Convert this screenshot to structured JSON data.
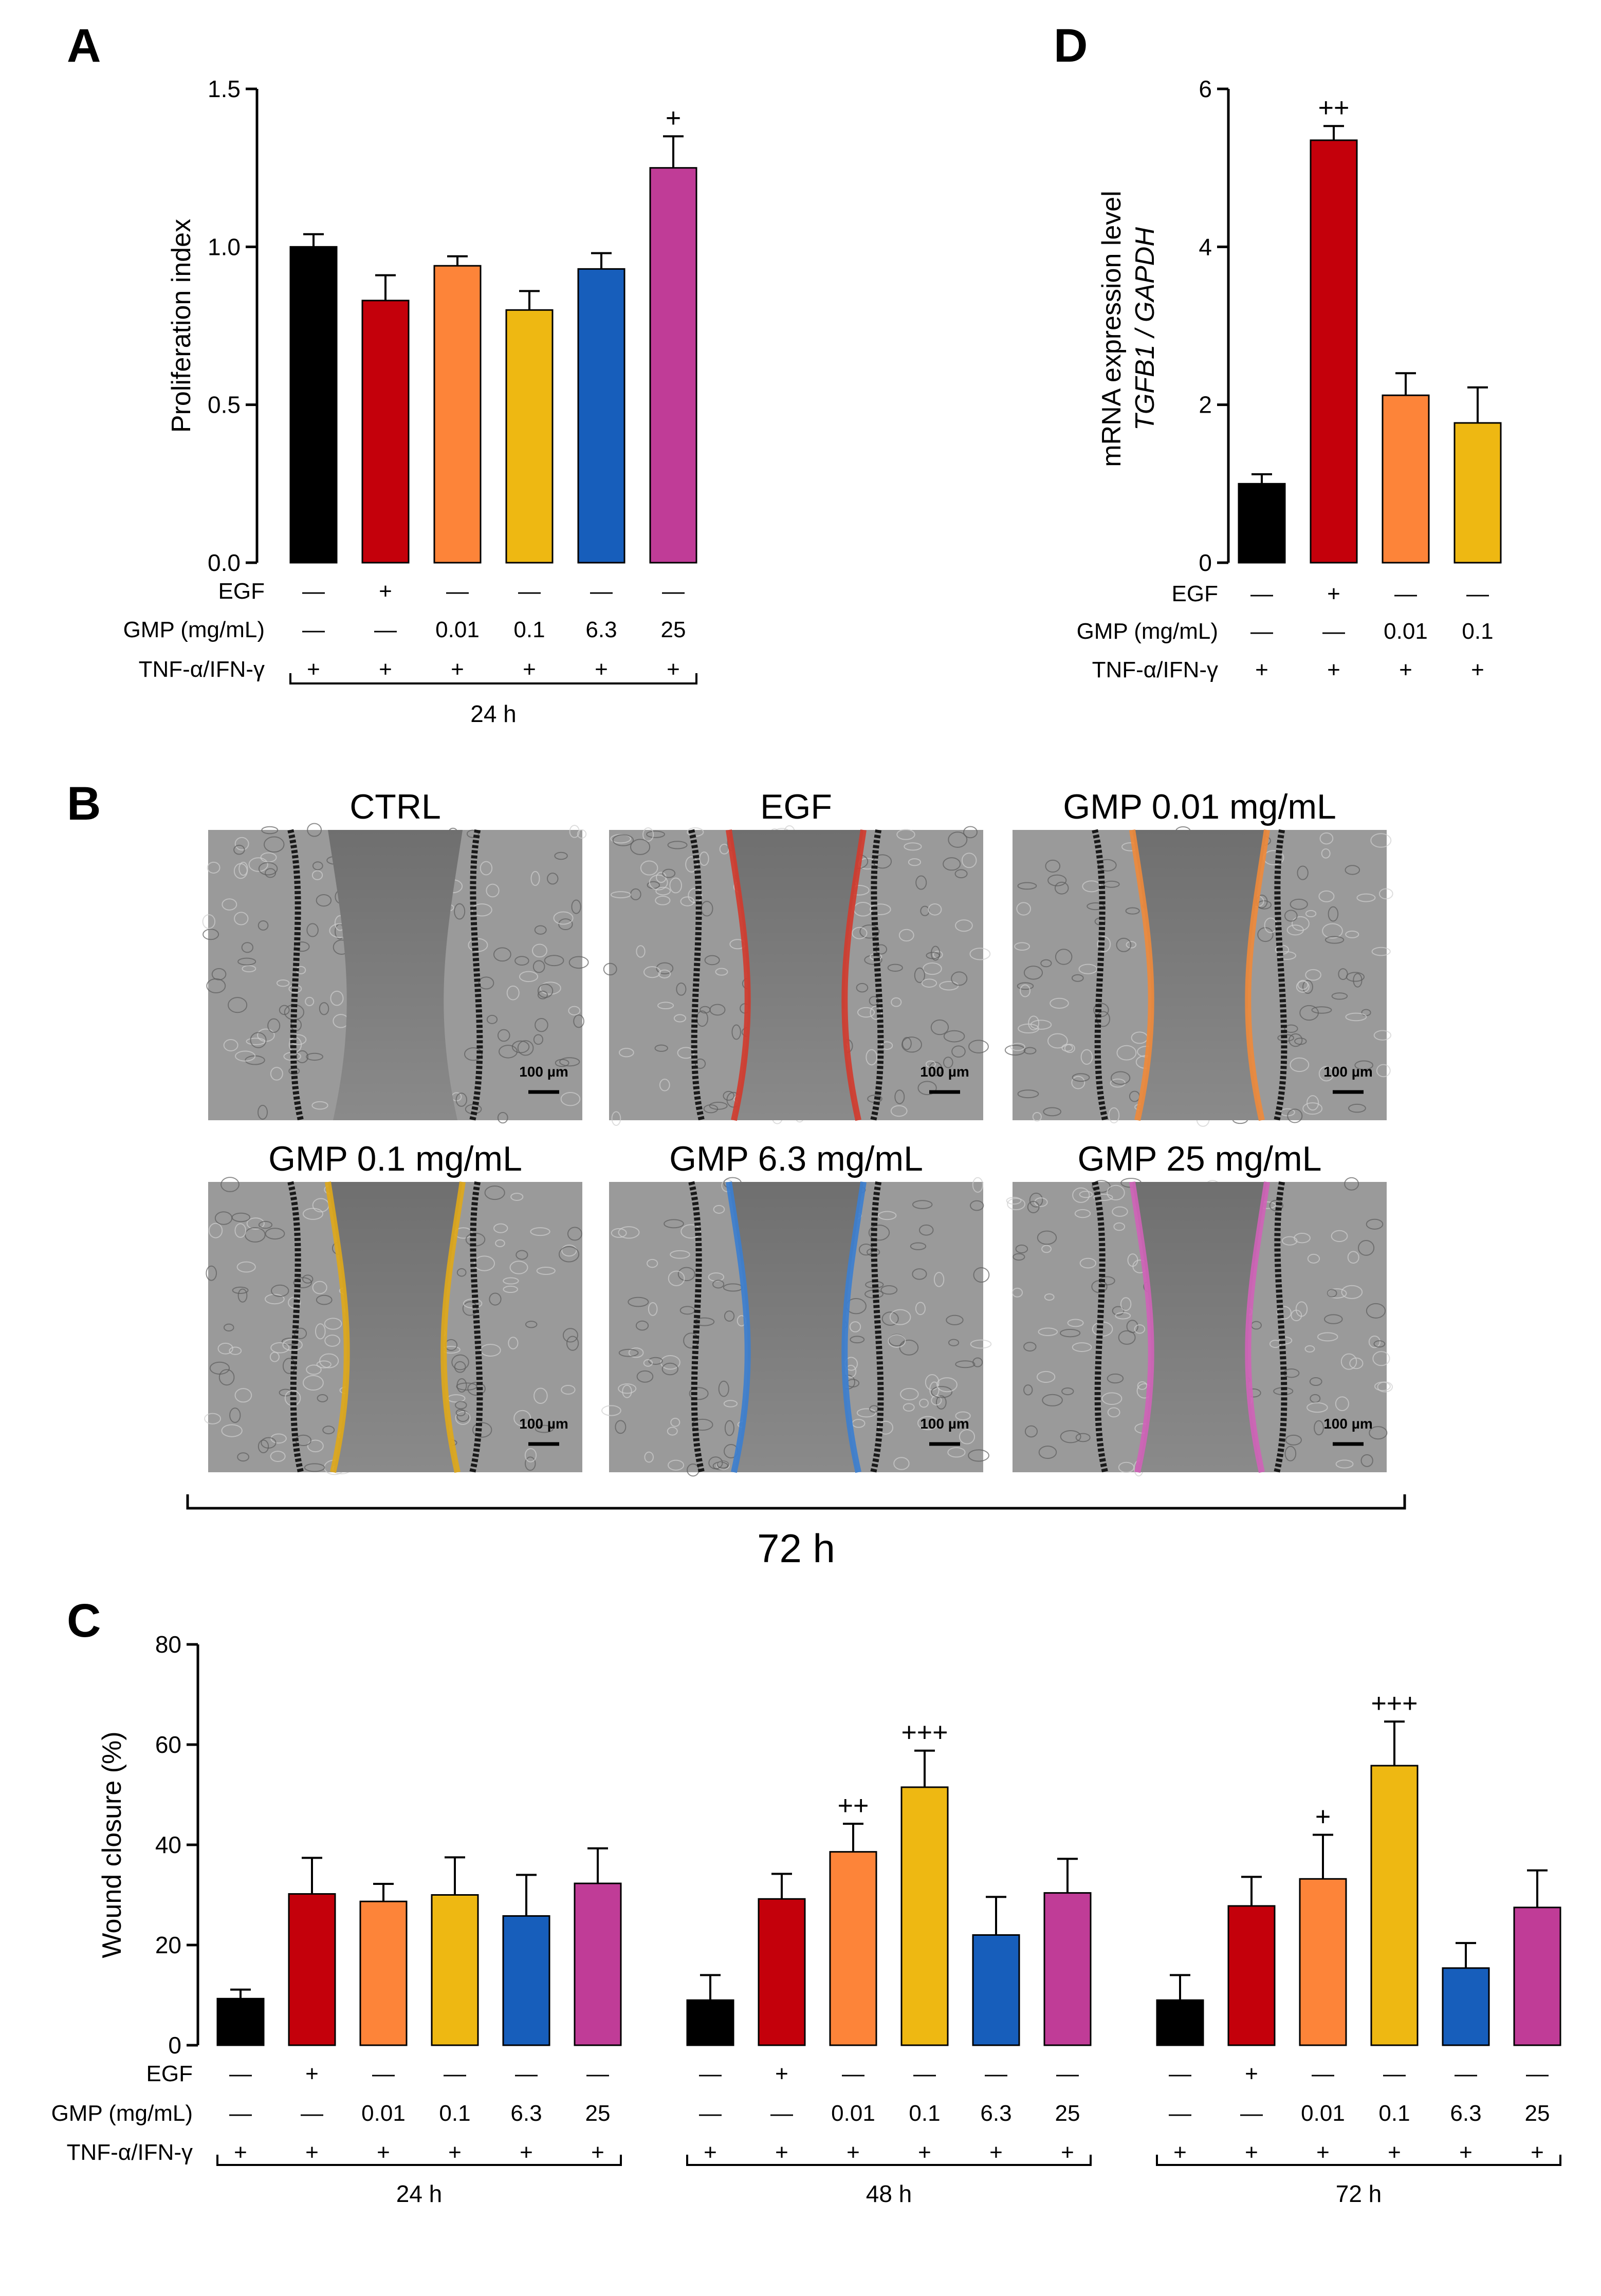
{
  "panels": {
    "a": "A",
    "b": "B",
    "c": "C",
    "d": "D"
  },
  "row_labels": {
    "egf": "EGF",
    "gmp": "GMP (mg/mL)",
    "tnf": "TNF-α/IFN-γ"
  },
  "colors": {
    "ctrl": "#000000",
    "egf": "#c4000b",
    "gmp001": "#fd8439",
    "gmp01": "#eeb812",
    "gmp63": "#175ebb",
    "gmp25": "#c03c97"
  },
  "chart_data": [
    {
      "id": "A",
      "type": "bar",
      "ylabel": "Proliferation index",
      "ylim": [
        0,
        1.5
      ],
      "yticks": [
        "0.0",
        "0.5",
        "1.0",
        "1.5"
      ],
      "ytick_values": [
        0,
        0.5,
        1.0,
        1.5
      ],
      "groups": [
        {
          "label": "24 h",
          "bars": [
            {
              "name": "CTRL",
              "value": 1.0,
              "error": 0.04,
              "color": "#000000",
              "egf": "—",
              "gmp": "—",
              "tnf": "+",
              "sig": ""
            },
            {
              "name": "EGF",
              "value": 0.83,
              "error": 0.08,
              "color": "#c4000b",
              "egf": "+",
              "gmp": "—",
              "tnf": "+",
              "sig": ""
            },
            {
              "name": "GMP 0.01",
              "value": 0.94,
              "error": 0.03,
              "color": "#fd8439",
              "egf": "—",
              "gmp": "0.01",
              "tnf": "+",
              "sig": ""
            },
            {
              "name": "GMP 0.1",
              "value": 0.8,
              "error": 0.06,
              "color": "#eeb812",
              "egf": "—",
              "gmp": "0.1",
              "tnf": "+",
              "sig": ""
            },
            {
              "name": "GMP 6.3",
              "value": 0.93,
              "error": 0.05,
              "color": "#175ebb",
              "egf": "—",
              "gmp": "6.3",
              "tnf": "+",
              "sig": ""
            },
            {
              "name": "GMP 25",
              "value": 1.25,
              "error": 0.1,
              "color": "#c03c97",
              "egf": "—",
              "gmp": "25",
              "tnf": "+",
              "sig": "+"
            }
          ]
        }
      ]
    },
    {
      "id": "D",
      "type": "bar",
      "ylabel_line1": "mRNA expression level",
      "ylabel_line2": "TGFB1 / GAPDH",
      "ylim": [
        0,
        6
      ],
      "yticks": [
        "0",
        "2",
        "4",
        "6"
      ],
      "ytick_values": [
        0,
        2,
        4,
        6
      ],
      "groups": [
        {
          "label": "",
          "bars": [
            {
              "name": "CTRL",
              "value": 1.0,
              "error": 0.12,
              "color": "#000000",
              "egf": "—",
              "gmp": "—",
              "tnf": "+",
              "sig": ""
            },
            {
              "name": "EGF",
              "value": 5.35,
              "error": 0.18,
              "color": "#c4000b",
              "egf": "+",
              "gmp": "—",
              "tnf": "+",
              "sig": "++"
            },
            {
              "name": "GMP 0.01",
              "value": 2.12,
              "error": 0.28,
              "color": "#fd8439",
              "egf": "—",
              "gmp": "0.01",
              "tnf": "+",
              "sig": ""
            },
            {
              "name": "GMP 0.1",
              "value": 1.77,
              "error": 0.45,
              "color": "#eeb812",
              "egf": "—",
              "gmp": "0.1",
              "tnf": "+",
              "sig": ""
            }
          ]
        }
      ]
    },
    {
      "id": "C",
      "type": "bar",
      "ylabel": "Wound closure (%)",
      "ylim": [
        0,
        80
      ],
      "yticks": [
        "0",
        "20",
        "40",
        "60",
        "80"
      ],
      "ytick_values": [
        0,
        20,
        40,
        60,
        80
      ],
      "groups": [
        {
          "label": "24 h",
          "bars": [
            {
              "name": "CTRL",
              "value": 9.3,
              "error": 1.8,
              "color": "#000000",
              "egf": "—",
              "gmp": "—",
              "tnf": "+",
              "sig": ""
            },
            {
              "name": "EGF",
              "value": 30.2,
              "error": 7.2,
              "color": "#c4000b",
              "egf": "+",
              "gmp": "—",
              "tnf": "+",
              "sig": ""
            },
            {
              "name": "GMP 0.01",
              "value": 28.7,
              "error": 3.5,
              "color": "#fd8439",
              "egf": "—",
              "gmp": "0.01",
              "tnf": "+",
              "sig": ""
            },
            {
              "name": "GMP 0.1",
              "value": 30.0,
              "error": 7.5,
              "color": "#eeb812",
              "egf": "—",
              "gmp": "0.1",
              "tnf": "+",
              "sig": ""
            },
            {
              "name": "GMP 6.3",
              "value": 25.8,
              "error": 8.2,
              "color": "#175ebb",
              "egf": "—",
              "gmp": "6.3",
              "tnf": "+",
              "sig": ""
            },
            {
              "name": "GMP 25",
              "value": 32.3,
              "error": 7.0,
              "color": "#c03c97",
              "egf": "—",
              "gmp": "25",
              "tnf": "+",
              "sig": ""
            }
          ]
        },
        {
          "label": "48 h",
          "bars": [
            {
              "name": "CTRL",
              "value": 9.0,
              "error": 5.0,
              "color": "#000000",
              "egf": "—",
              "gmp": "—",
              "tnf": "+",
              "sig": ""
            },
            {
              "name": "EGF",
              "value": 29.2,
              "error": 5.0,
              "color": "#c4000b",
              "egf": "+",
              "gmp": "—",
              "tnf": "+",
              "sig": ""
            },
            {
              "name": "GMP 0.01",
              "value": 38.6,
              "error": 5.6,
              "color": "#fd8439",
              "egf": "—",
              "gmp": "0.01",
              "tnf": "+",
              "sig": "++"
            },
            {
              "name": "GMP 0.1",
              "value": 51.5,
              "error": 7.3,
              "color": "#eeb812",
              "egf": "—",
              "gmp": "0.1",
              "tnf": "+",
              "sig": "+++"
            },
            {
              "name": "GMP 6.3",
              "value": 22.0,
              "error": 7.6,
              "color": "#175ebb",
              "egf": "—",
              "gmp": "6.3",
              "tnf": "+",
              "sig": ""
            },
            {
              "name": "GMP 25",
              "value": 30.4,
              "error": 6.8,
              "color": "#c03c97",
              "egf": "—",
              "gmp": "25",
              "tnf": "+",
              "sig": ""
            }
          ]
        },
        {
          "label": "72 h",
          "bars": [
            {
              "name": "CTRL",
              "value": 9.0,
              "error": 5.0,
              "color": "#000000",
              "egf": "—",
              "gmp": "—",
              "tnf": "+",
              "sig": ""
            },
            {
              "name": "EGF",
              "value": 27.8,
              "error": 5.8,
              "color": "#c4000b",
              "egf": "+",
              "gmp": "—",
              "tnf": "+",
              "sig": ""
            },
            {
              "name": "GMP 0.01",
              "value": 33.2,
              "error": 8.8,
              "color": "#fd8439",
              "egf": "—",
              "gmp": "0.01",
              "tnf": "+",
              "sig": "+"
            },
            {
              "name": "GMP 0.1",
              "value": 55.8,
              "error": 8.8,
              "color": "#eeb812",
              "egf": "—",
              "gmp": "0.1",
              "tnf": "+",
              "sig": "+++"
            },
            {
              "name": "GMP 6.3",
              "value": 15.4,
              "error": 5.0,
              "color": "#175ebb",
              "egf": "—",
              "gmp": "6.3",
              "tnf": "+",
              "sig": ""
            },
            {
              "name": "GMP 25",
              "value": 27.5,
              "error": 7.4,
              "color": "#c03c97",
              "egf": "—",
              "gmp": "25",
              "tnf": "+",
              "sig": ""
            }
          ]
        }
      ]
    }
  ],
  "micrographs": {
    "items": [
      {
        "title": "CTRL",
        "line_color": "#1a1a1a",
        "scale": "100 µm"
      },
      {
        "title": "EGF",
        "line_color": "#d33a2c",
        "scale": "100 µm"
      },
      {
        "title": "GMP 0.01 mg/mL",
        "line_color": "#f08a3a",
        "scale": "100 µm"
      },
      {
        "title": "GMP 0.1  mg/mL",
        "line_color": "#e0a818",
        "scale": "100 µm"
      },
      {
        "title": "GMP 6.3  mg/mL",
        "line_color": "#3b7ed0",
        "scale": "100 µm"
      },
      {
        "title": "GMP 25 mg/mL",
        "line_color": "#d062b8",
        "scale": "100 µm"
      }
    ],
    "time_label": "72 h"
  }
}
